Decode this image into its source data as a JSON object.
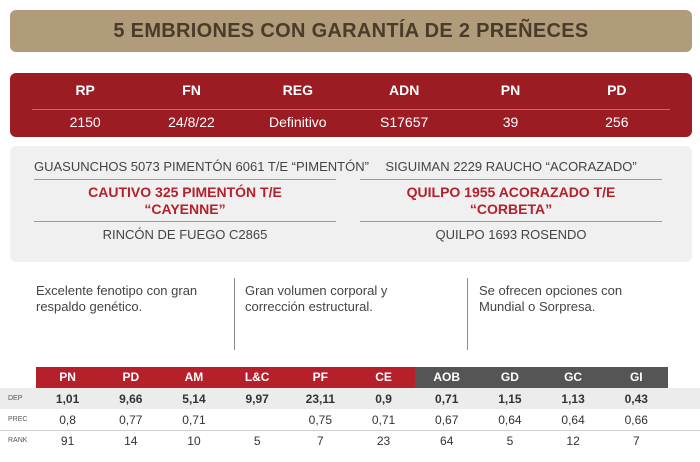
{
  "banner": {
    "title": "5 EMBRIONES CON GARANTÍA DE 2 PREÑECES"
  },
  "id_card": {
    "headers": [
      "RP",
      "FN",
      "REG",
      "ADN",
      "PN",
      "PD"
    ],
    "values": [
      "2150",
      "24/8/22",
      "Definitivo",
      "S17657",
      "39",
      "256"
    ]
  },
  "pedigree": {
    "sire_side": {
      "grandsire": "GUASUNCHOS 5073 PIMENTÓN 6061 T/E “PIMENTÓN”",
      "parent_line1": "CAUTIVO 325 PIMENTÓN T/E",
      "parent_line2": "“CAYENNE”",
      "granddam": "RINCÓN DE FUEGO C2865"
    },
    "dam_side": {
      "grandsire": "SIGUIMAN 2229 RAUCHO “ACORAZADO”",
      "parent_line1": "QUILPO 1955 ACORAZADO T/E",
      "parent_line2": "“CORBETA”",
      "granddam": "QUILPO 1693 ROSENDO"
    }
  },
  "descriptions": [
    {
      "line1": "Excelente fenotipo con gran",
      "line2": "respaldo genético."
    },
    {
      "line1": "Gran volumen corporal y",
      "line2": "corrección estructural."
    },
    {
      "line1": "Se ofrecen opciones con",
      "line2": "Mundial o Sorpresa."
    }
  ],
  "epd_table": {
    "headers": [
      "PN",
      "PD",
      "AM",
      "L&C",
      "PF",
      "CE",
      "AOB",
      "GD",
      "GC",
      "GI"
    ],
    "header_colors": {
      "production": "#b5202a",
      "carcass": "#555555"
    },
    "rows": [
      {
        "label": "DEP",
        "values": [
          "1,01",
          "9,66",
          "5,14",
          "9,97",
          "23,11",
          "0,9",
          "0,71",
          "1,15",
          "1,13",
          "0,43"
        ]
      },
      {
        "label": "PREC",
        "values": [
          "0,8",
          "0,77",
          "0,71",
          "",
          "0,75",
          "0,71",
          "0,67",
          "0,64",
          "0,64",
          "0,66"
        ]
      },
      {
        "label": "RANK",
        "values": [
          "91",
          "14",
          "10",
          "5",
          "7",
          "23",
          "64",
          "5",
          "12",
          "7"
        ]
      }
    ]
  }
}
